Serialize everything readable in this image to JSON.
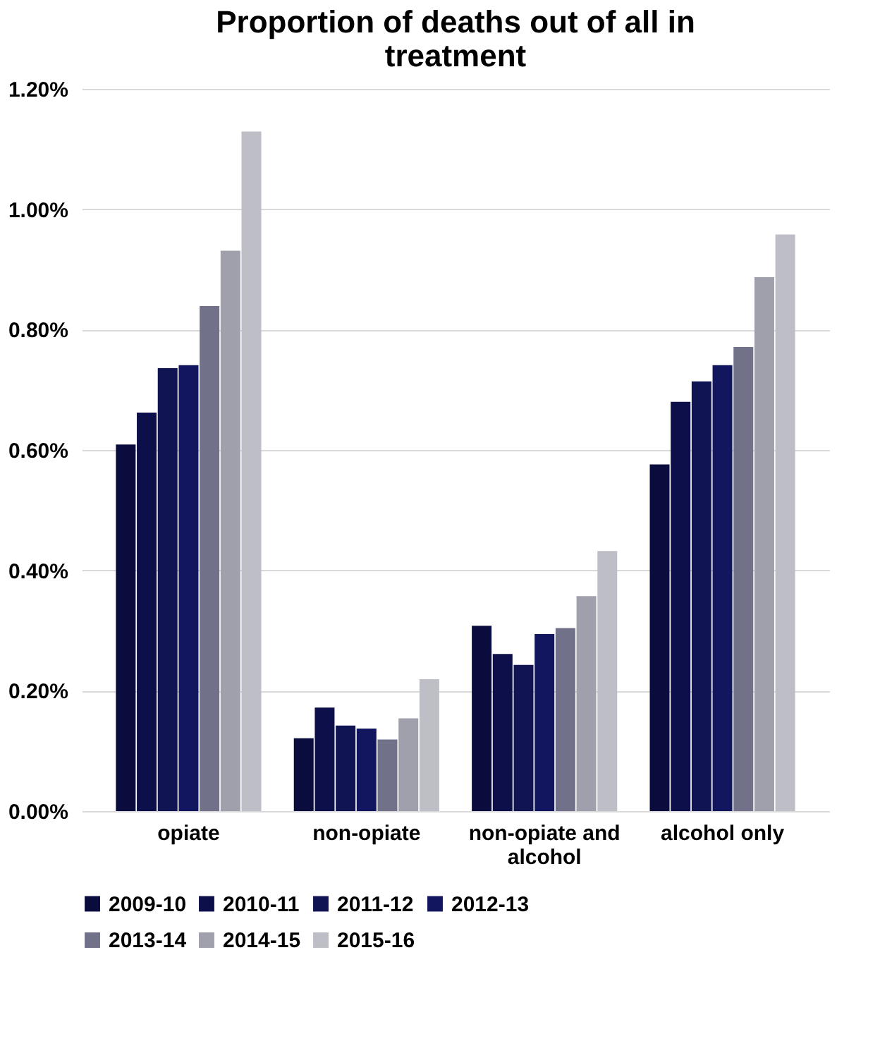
{
  "chart_data": {
    "type": "bar",
    "title": "Proportion of deaths out of all in treatment",
    "categories": [
      "opiate",
      "non-opiate",
      "non-opiate and alcohol",
      "alcohol only"
    ],
    "series": [
      {
        "name": "2009-10",
        "color": "#0b0c3e",
        "values": [
          0.609,
          0.121,
          0.308,
          0.576
        ]
      },
      {
        "name": "2010-11",
        "color": "#0d0f4a",
        "values": [
          0.662,
          0.172,
          0.261,
          0.68
        ]
      },
      {
        "name": "2011-12",
        "color": "#101452",
        "values": [
          0.736,
          0.142,
          0.243,
          0.714
        ]
      },
      {
        "name": "2012-13",
        "color": "#11165e",
        "values": [
          0.741,
          0.137,
          0.294,
          0.741
        ]
      },
      {
        "name": "2013-14",
        "color": "#72718a",
        "values": [
          0.839,
          0.119,
          0.304,
          0.771
        ]
      },
      {
        "name": "2014-15",
        "color": "#a0a0ad",
        "values": [
          0.931,
          0.154,
          0.357,
          0.887
        ]
      },
      {
        "name": "2015-16",
        "color": "#bebec6",
        "values": [
          1.129,
          0.219,
          0.432,
          0.958
        ]
      }
    ],
    "ylim": [
      0,
      1.2
    ],
    "yticks": [
      {
        "value": 0,
        "label": "0.00%"
      },
      {
        "value": 0.2,
        "label": "0.20%"
      },
      {
        "value": 0.4,
        "label": "0.40%"
      },
      {
        "value": 0.6,
        "label": "0.60%"
      },
      {
        "value": 0.8,
        "label": "0.80%"
      },
      {
        "value": 1.0,
        "label": "1.00%"
      },
      {
        "value": 1.2,
        "label": "1.20%"
      }
    ],
    "grid": "y",
    "legend": "bottom"
  }
}
